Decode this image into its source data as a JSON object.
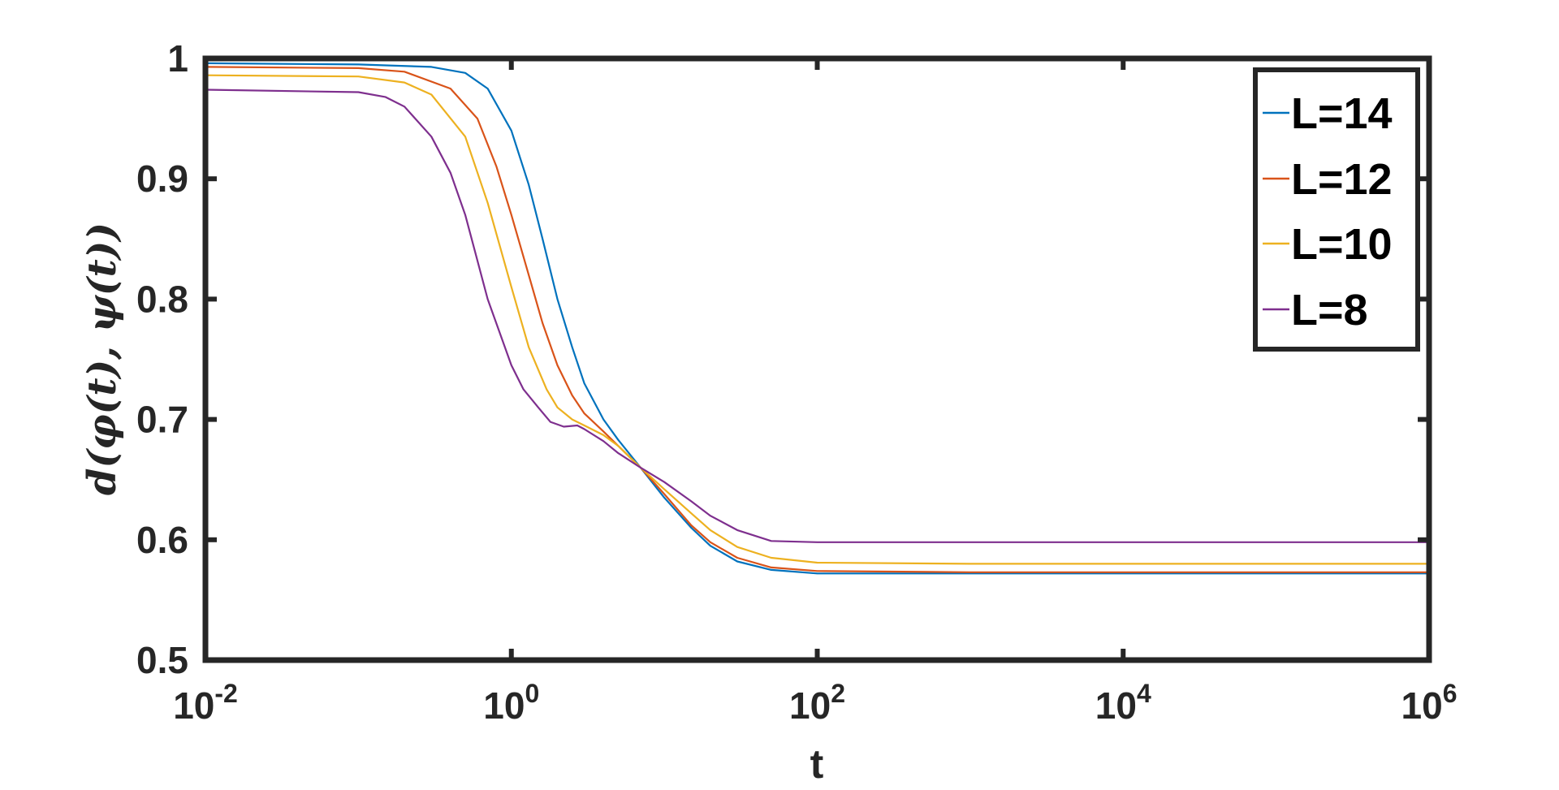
{
  "chart_data": {
    "type": "line",
    "xlabel": "t",
    "ylabel": "d(φ(t), ψ(t))",
    "xscale": "log",
    "xlim": [
      0.01,
      1000000
    ],
    "ylim": [
      0.5,
      1
    ],
    "x_ticks": [
      {
        "value": 0.01,
        "base": "10",
        "exp": "-2"
      },
      {
        "value": 1,
        "base": "10",
        "exp": "0"
      },
      {
        "value": 100,
        "base": "10",
        "exp": "2"
      },
      {
        "value": 10000,
        "base": "10",
        "exp": "4"
      },
      {
        "value": 1000000,
        "base": "10",
        "exp": "6"
      }
    ],
    "y_ticks": [
      {
        "value": 0.5,
        "label": "0.5"
      },
      {
        "value": 0.6,
        "label": "0.6"
      },
      {
        "value": 0.7,
        "label": "0.7"
      },
      {
        "value": 0.8,
        "label": "0.8"
      },
      {
        "value": 0.9,
        "label": "0.9"
      },
      {
        "value": 1.0,
        "label": "1"
      }
    ],
    "grid": false,
    "legend_position": "top-right",
    "series": [
      {
        "name": "L=14",
        "color": "#0072BD",
        "x": [
          0.01,
          0.1,
          0.3,
          0.5,
          0.7,
          1,
          1.3,
          1.6,
          2,
          2.5,
          3,
          4,
          5,
          7,
          10,
          15,
          20,
          30,
          50,
          100,
          1000,
          1000000
        ],
        "y": [
          0.996,
          0.995,
          0.993,
          0.988,
          0.975,
          0.94,
          0.895,
          0.85,
          0.8,
          0.76,
          0.73,
          0.7,
          0.683,
          0.66,
          0.635,
          0.61,
          0.595,
          0.582,
          0.575,
          0.572,
          0.572,
          0.572
        ]
      },
      {
        "name": "L=12",
        "color": "#D95319",
        "x": [
          0.01,
          0.1,
          0.2,
          0.4,
          0.6,
          0.8,
          1,
          1.3,
          1.6,
          2,
          2.5,
          3,
          4,
          5,
          7,
          10,
          15,
          20,
          30,
          50,
          100,
          1000,
          1000000
        ],
        "y": [
          0.993,
          0.992,
          0.989,
          0.975,
          0.95,
          0.91,
          0.87,
          0.82,
          0.78,
          0.745,
          0.72,
          0.705,
          0.69,
          0.678,
          0.66,
          0.638,
          0.612,
          0.598,
          0.585,
          0.577,
          0.574,
          0.573,
          0.573
        ]
      },
      {
        "name": "L=10",
        "color": "#EDB120",
        "x": [
          0.01,
          0.1,
          0.2,
          0.3,
          0.5,
          0.7,
          1,
          1.3,
          1.7,
          2,
          2.5,
          3,
          4,
          5,
          7,
          10,
          15,
          20,
          30,
          50,
          100,
          1000,
          1000000
        ],
        "y": [
          0.986,
          0.985,
          0.98,
          0.97,
          0.935,
          0.88,
          0.81,
          0.76,
          0.725,
          0.71,
          0.7,
          0.695,
          0.687,
          0.678,
          0.66,
          0.642,
          0.622,
          0.608,
          0.594,
          0.585,
          0.581,
          0.58,
          0.58
        ]
      },
      {
        "name": "L=8",
        "color": "#7E2F8E",
        "x": [
          0.01,
          0.1,
          0.15,
          0.2,
          0.3,
          0.4,
          0.5,
          0.7,
          1,
          1.2,
          1.5,
          1.8,
          2.2,
          2.7,
          3,
          4,
          5,
          7,
          10,
          15,
          20,
          30,
          50,
          100,
          1000,
          1000000
        ],
        "y": [
          0.974,
          0.972,
          0.968,
          0.96,
          0.935,
          0.905,
          0.87,
          0.8,
          0.745,
          0.725,
          0.71,
          0.698,
          0.694,
          0.695,
          0.692,
          0.682,
          0.672,
          0.66,
          0.648,
          0.632,
          0.62,
          0.608,
          0.599,
          0.598,
          0.598,
          0.598
        ]
      }
    ]
  }
}
